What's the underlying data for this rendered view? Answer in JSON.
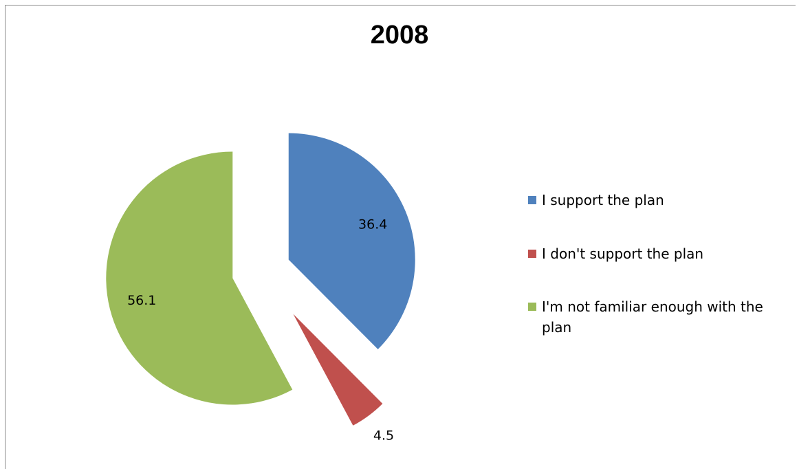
{
  "chart_data": {
    "type": "pie",
    "title": "2008",
    "exploded": true,
    "start_angle_deg": 0,
    "direction": "clockwise",
    "legend_position": "right",
    "slices": [
      {
        "label": "I support the plan",
        "value": 36.4,
        "color": "#4F81BD"
      },
      {
        "label": "I don't support the plan",
        "value": 4.5,
        "color": "#C0504D"
      },
      {
        "label": "I'm not familiar enough with the plan",
        "value": 56.1,
        "color": "#9BBB59"
      }
    ]
  }
}
